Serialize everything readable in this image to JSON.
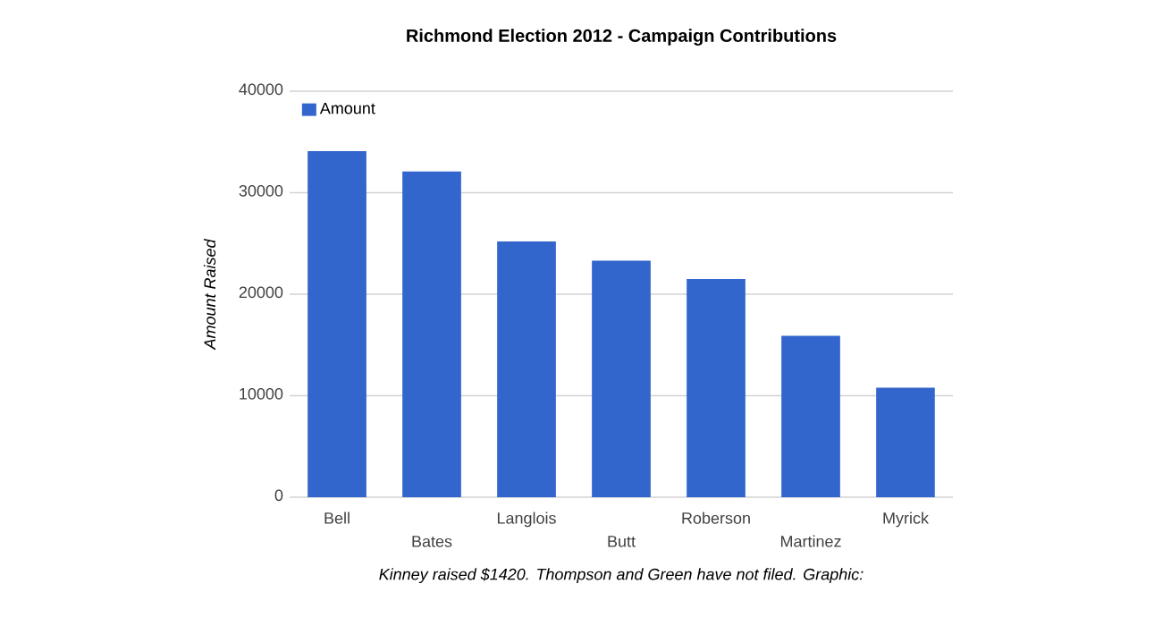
{
  "chart_data": {
    "type": "bar",
    "title": "Richmond Election 2012 - Campaign Contributions",
    "ylabel": "Amount Raised",
    "categories": [
      "Bell",
      "Bates",
      "Langlois",
      "Butt",
      "Roberson",
      "Martinez",
      "Myrick"
    ],
    "series": [
      {
        "name": "Amount",
        "color": "#3366cc",
        "values": [
          34100,
          32100,
          25200,
          23300,
          21500,
          15900,
          10800
        ]
      }
    ],
    "ylim": [
      0,
      40000
    ],
    "yticks": [
      0,
      10000,
      20000,
      30000,
      40000
    ],
    "grid": "y",
    "legend": "top left",
    "annotations": [
      "Kinney raised $1420. Thompson and Green have not filed. Graphic:"
    ]
  }
}
